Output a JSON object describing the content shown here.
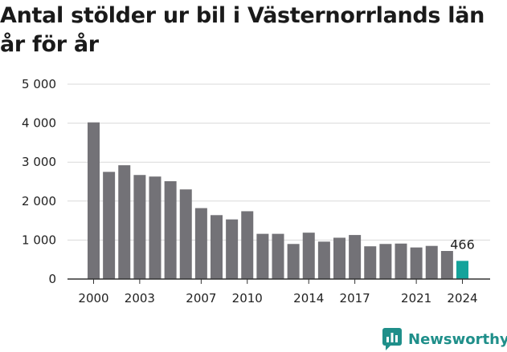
{
  "chart_data": {
    "type": "bar",
    "title": "Antal stölder ur bil i Västernorrlands län år för år",
    "xlabel": "",
    "ylabel": "",
    "ylim": [
      0,
      5000
    ],
    "y_ticks": [
      0,
      1000,
      2000,
      3000,
      4000,
      5000
    ],
    "y_tick_labels": [
      "0",
      "1 000",
      "2 000",
      "3 000",
      "4 000",
      "5 000"
    ],
    "x_tick_labels": [
      "2000",
      "2003",
      "2007",
      "2010",
      "2014",
      "2017",
      "2021",
      "2024"
    ],
    "categories": [
      "2000",
      "2001",
      "2002",
      "2003",
      "2004",
      "2005",
      "2006",
      "2007",
      "2008",
      "2009",
      "2010",
      "2011",
      "2012",
      "2013",
      "2014",
      "2015",
      "2016",
      "2017",
      "2018",
      "2019",
      "2020",
      "2021",
      "2022",
      "2023",
      "2024"
    ],
    "values": [
      4020,
      2750,
      2920,
      2670,
      2630,
      2510,
      2300,
      1820,
      1640,
      1530,
      1740,
      1160,
      1160,
      900,
      1190,
      960,
      1060,
      1130,
      840,
      900,
      910,
      810,
      850,
      720,
      466
    ],
    "highlight_index": 24,
    "annotation": "466",
    "colors": {
      "bar": "#737277",
      "highlight": "#14a39b",
      "grid": "#d9d9d9",
      "axis": "#333333"
    }
  },
  "brand": {
    "name": "Newsworthy",
    "icon": "newsworthy-logo-icon",
    "color": "#1f8f8a"
  }
}
